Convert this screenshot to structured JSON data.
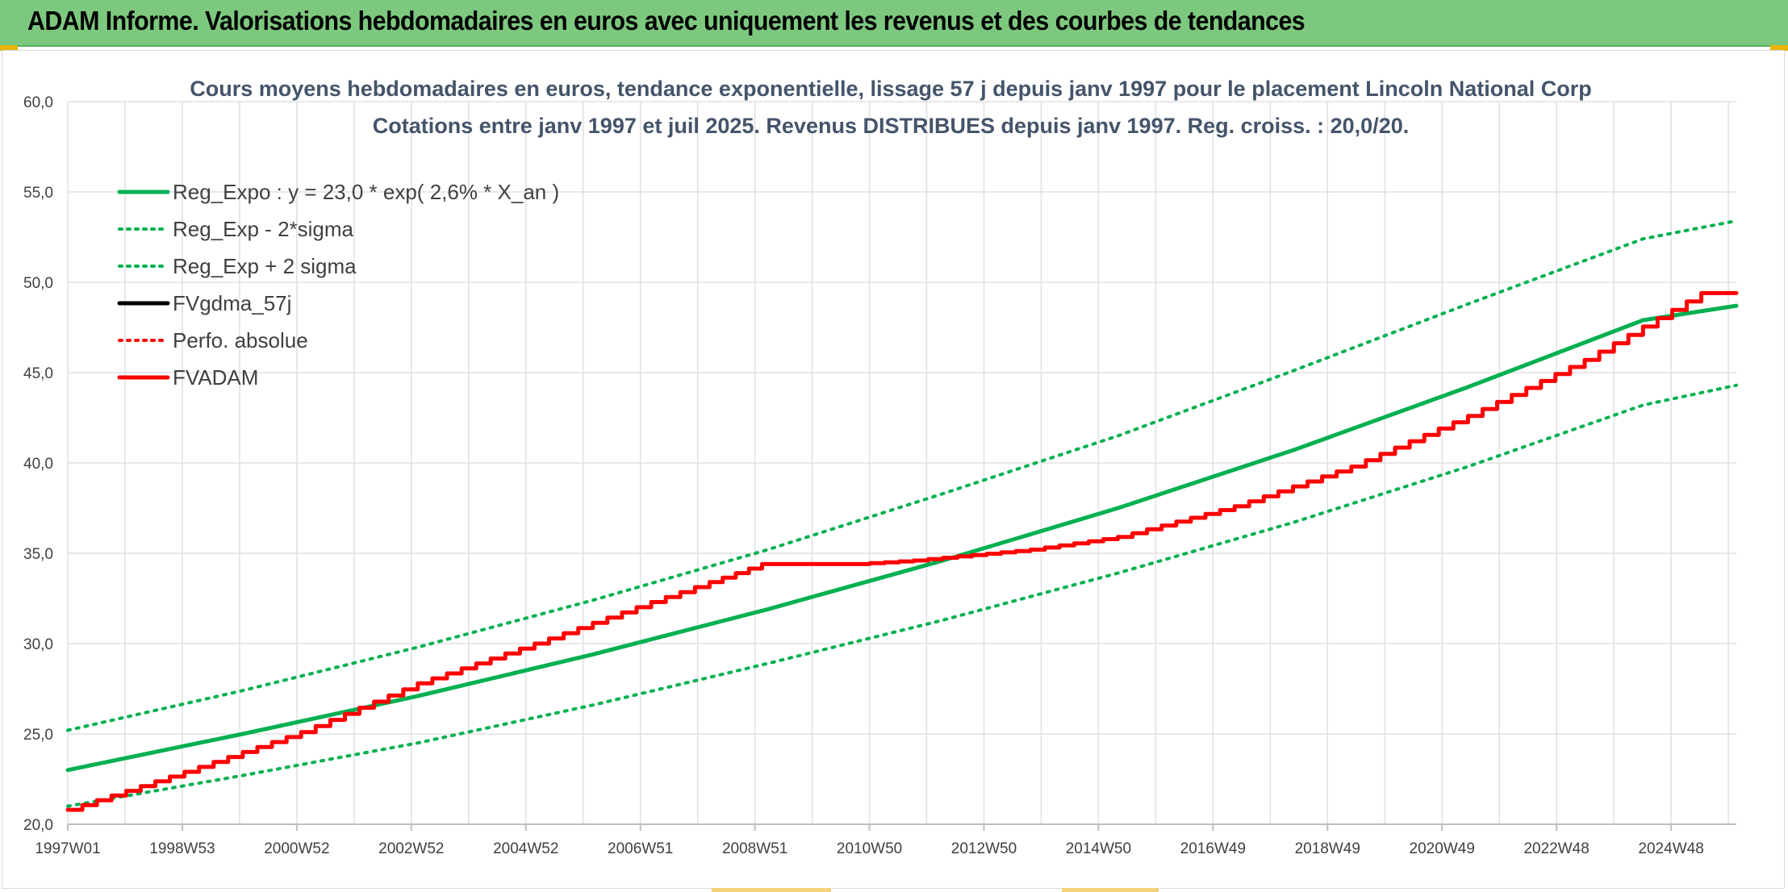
{
  "header": {
    "title": "ADAM Informe. Valorisations hebdomadaires en euros avec uniquement les revenus et des courbes de tendances"
  },
  "colors": {
    "banner": "#7dc87f",
    "green": "#00b050",
    "red": "#ff0000",
    "black": "#000000",
    "grid": "#e0e0e0",
    "title": "#44546a"
  },
  "chart_data": {
    "type": "line",
    "title": "Cours moyens hebdomadaires en euros, tendance exponentielle, lissage 57 j depuis janv 1997 pour le placement Lincoln National Corp",
    "subtitle": "Cotations entre janv 1997 et juil 2025. Revenus DISTRIBUES depuis janv 1997. Reg. croiss. : 20,0/20.",
    "xlabel": "",
    "ylabel": "",
    "categories": [
      "1997W01",
      "1998W53",
      "2000W52",
      "2002W52",
      "2004W52",
      "2006W51",
      "2008W51",
      "2010W50",
      "2012W50",
      "2014W50",
      "2016W49",
      "2018W49",
      "2020W49",
      "2022W48",
      "2024W48"
    ],
    "x_range": [
      1997.0,
      2025.6
    ],
    "ylim": [
      20,
      60
    ],
    "y_ticks": [
      "20,0",
      "25,0",
      "30,0",
      "35,0",
      "40,0",
      "45,0",
      "50,0",
      "55,0",
      "60,0"
    ],
    "grid": true,
    "legend_position": "top-left",
    "legend": [
      {
        "label": "Reg_Expo : y = 23,0 * exp( 2,6% *  X_an )",
        "color": "#00b050",
        "style": "solid"
      },
      {
        "label": "Reg_Exp - 2*sigma",
        "color": "#00b050",
        "style": "dotted"
      },
      {
        "label": "Reg_Exp + 2 sigma",
        "color": "#00b050",
        "style": "dotted"
      },
      {
        "label": "FVgdma_57j",
        "color": "#000000",
        "style": "solid"
      },
      {
        "label": "Perfo. absolue",
        "color": "#ff0000",
        "style": "dotted"
      },
      {
        "label": "FVADAM",
        "color": "#ff0000",
        "style": "solid"
      }
    ],
    "series": [
      {
        "name": "Reg_Expo : y = 23,0 * exp( 2,6% *  X_an )",
        "color": "#00b050",
        "style": "solid",
        "width": 5,
        "x": [
          1997.0,
          2000.0,
          2003.0,
          2006.0,
          2009.0,
          2012.0,
          2015.0,
          2018.0,
          2021.0,
          2024.0,
          2025.6
        ],
        "y": [
          23.0,
          25.0,
          27.1,
          29.4,
          31.9,
          34.6,
          37.5,
          40.7,
          44.2,
          47.9,
          48.7
        ]
      },
      {
        "name": "Reg_Exp - 2*sigma",
        "color": "#00b050",
        "style": "dotted",
        "width": 4,
        "x": [
          1997.0,
          2000.0,
          2003.0,
          2006.0,
          2009.0,
          2012.0,
          2015.0,
          2018.0,
          2021.0,
          2024.0,
          2025.6
        ],
        "y": [
          21.0,
          22.7,
          24.5,
          26.6,
          28.9,
          31.3,
          33.9,
          36.7,
          39.8,
          43.2,
          44.3
        ]
      },
      {
        "name": "Reg_Exp + 2 sigma",
        "color": "#00b050",
        "style": "dotted",
        "width": 4,
        "x": [
          1997.0,
          2000.0,
          2003.0,
          2006.0,
          2009.0,
          2012.0,
          2015.0,
          2018.0,
          2021.0,
          2024.0,
          2025.6
        ],
        "y": [
          25.2,
          27.4,
          29.8,
          32.4,
          35.2,
          38.3,
          41.5,
          45.1,
          48.8,
          52.4,
          53.4
        ]
      },
      {
        "name": "FVADAM",
        "color": "#ff0000",
        "style": "solid",
        "width": 5,
        "stepped": true,
        "x": [
          1997.0,
          1999.0,
          2001.0,
          2003.0,
          2005.0,
          2007.0,
          2008.0,
          2008.9,
          2009.5,
          2010.5,
          2011.5,
          2012.5,
          2013.5,
          2015.0,
          2017.0,
          2019.0,
          2021.0,
          2023.0,
          2025.0,
          2025.6
        ],
        "y": [
          20.8,
          22.9,
          25.1,
          27.8,
          30.0,
          32.3,
          33.4,
          34.4,
          34.4,
          34.4,
          34.6,
          34.9,
          35.2,
          35.9,
          37.6,
          39.8,
          42.6,
          45.7,
          49.4,
          49.4
        ]
      }
    ]
  }
}
